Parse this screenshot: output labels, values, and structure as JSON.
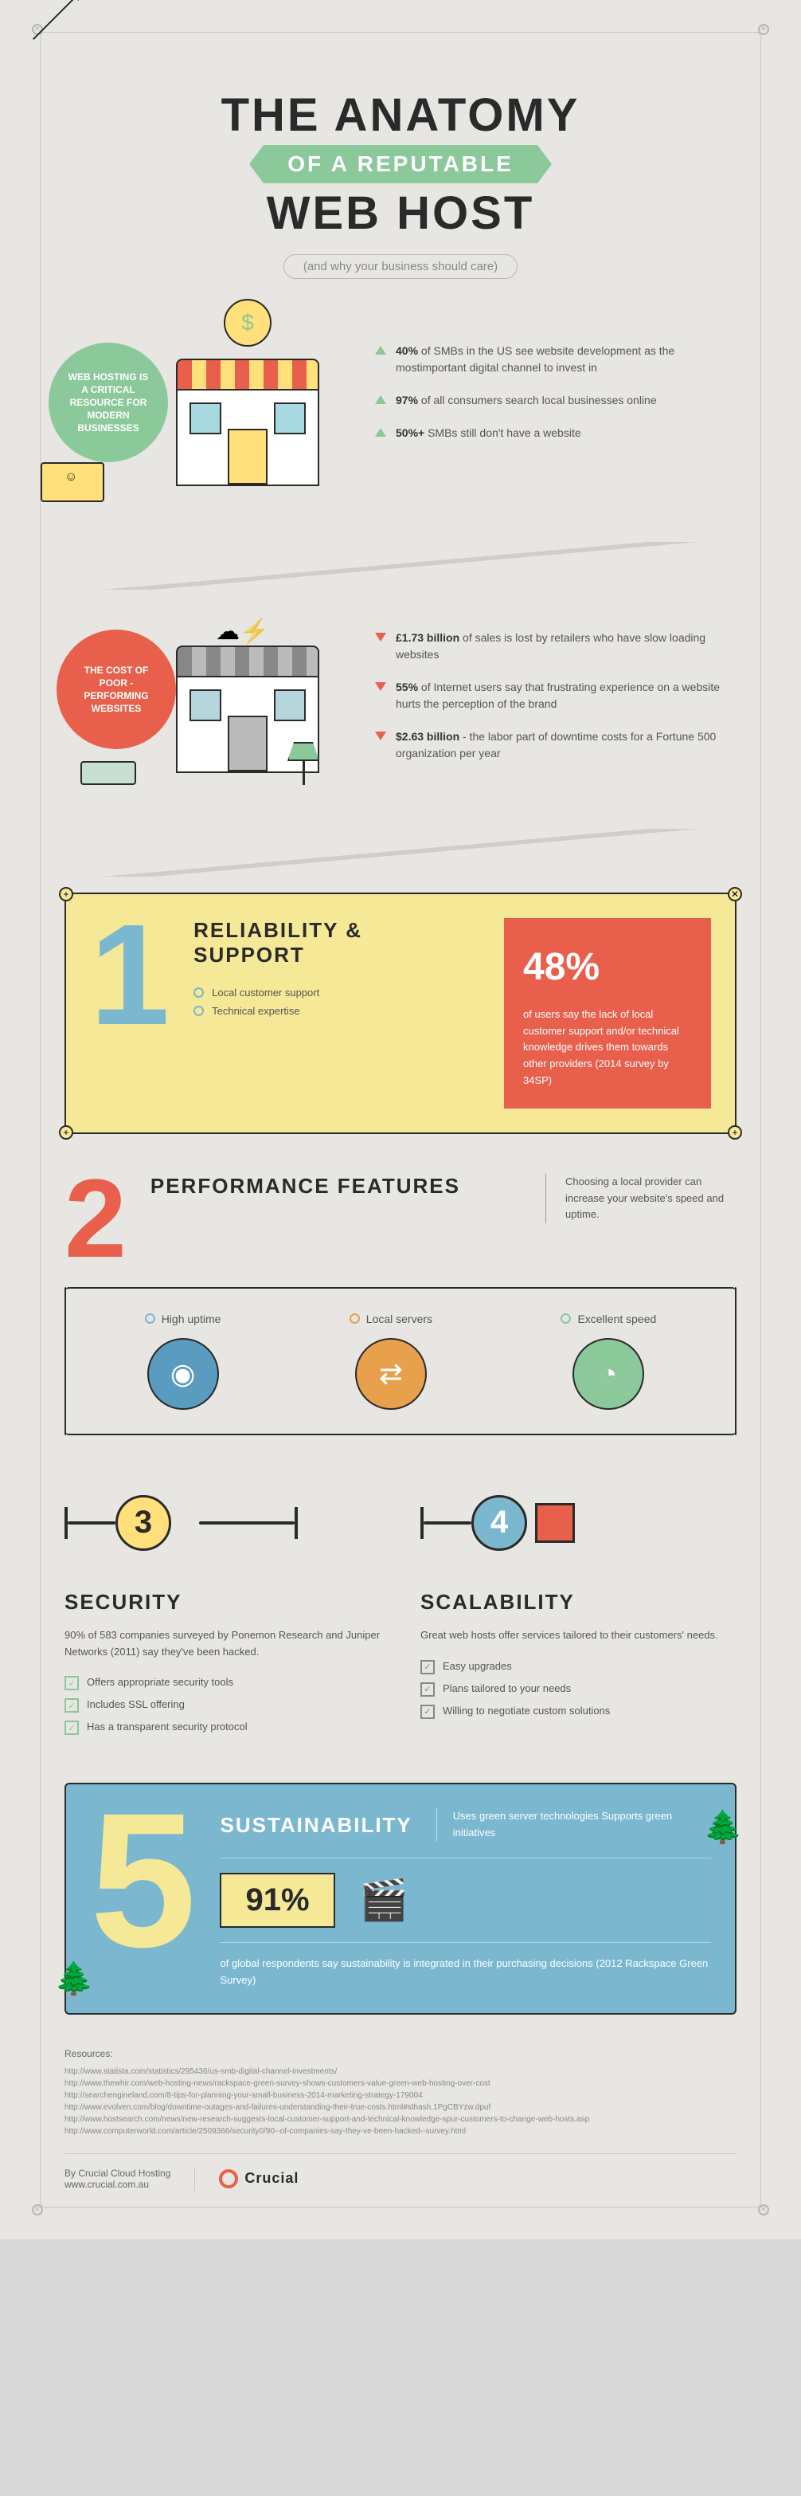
{
  "title": {
    "top": "THE ANATOMY",
    "mid": "OF A REPUTABLE",
    "bot": "WEB HOST",
    "tagline": "(and why your business should care)"
  },
  "intro1": {
    "badge": "WEB HOSTING IS A CRITICAL RESOURCE FOR MODERN BUSINESSES",
    "facts": [
      {
        "dir": "up",
        "bold": "40%",
        "text": " of SMBs in the US see website development as the mostimportant digital channel to invest in"
      },
      {
        "dir": "up",
        "bold": "97%",
        "text": " of all consumers search local businesses online"
      },
      {
        "dir": "up",
        "bold": "50%+",
        "text": " SMBs still don't have a website"
      }
    ]
  },
  "intro2": {
    "badge": "THE COST OF POOR - PERFORMING WEBSITES",
    "facts": [
      {
        "dir": "down",
        "bold": "£1.73 billion",
        "text": " of sales is lost by retailers who have slow loading websites"
      },
      {
        "dir": "down",
        "bold": "55%",
        "text": " of Internet users say that frustrating experience on a website hurts the perception of the brand"
      },
      {
        "dir": "down",
        "bold": "$2.63 billion",
        "text": " - the labor part of downtime costs for a Fortune 500 organization per year"
      }
    ]
  },
  "sec1": {
    "num": "1",
    "title": "RELIABILITY & SUPPORT",
    "bullets": [
      "Local customer support",
      "Technical expertise"
    ],
    "pct": "48%",
    "stat": "of users say the lack of local customer support and/or technical knowledge drives them towards other providers (2014 survey by 34SP)"
  },
  "sec2": {
    "num": "2",
    "title": "PERFORMANCE FEATURES",
    "desc": "Choosing a local provider can increase your website's speed and uptime.",
    "features": [
      {
        "label": "High uptime",
        "icon": "◉",
        "color": "#5a9bc0"
      },
      {
        "label": "Local servers",
        "icon": "⇄",
        "color": "#e8a04c"
      },
      {
        "label": "Excellent speed",
        "icon": "◔",
        "color": "#8bc89a"
      }
    ]
  },
  "sec3": {
    "num": "3",
    "title": "SECURITY",
    "desc": "90% of 583 companies surveyed by Ponemon Research and Juniper Networks (2011) say they've been hacked.",
    "checks": [
      "Offers appropriate security tools",
      "Includes SSL offering",
      "Has a transparent security protocol"
    ]
  },
  "sec4": {
    "num": "4",
    "title": "SCALABILITY",
    "desc": "Great web hosts offer services tailored to their customers' needs.",
    "checks": [
      "Easy upgrades",
      "Plans tailored to your needs",
      "Willing to negotiate custom solutions"
    ]
  },
  "sec5": {
    "num": "5",
    "title": "SUSTAINABILITY",
    "sub": "Uses green server technologies Supports green initiatives",
    "pct": "91%",
    "foot": "of global respondents say sustainability is integrated in their purchasing decisions (2012 Rackspace Green Survey)"
  },
  "resources": {
    "heading": "Resources:",
    "links": [
      "http://www.statista.com/statistics/295436/us-smb-digital-channel-investments/",
      "http://www.thewhir.com/web-hosting-news/rackspace-green-survey-shows-customers-value-green-web-hosting-over-cost",
      "http://searchengineland.com/8-tips-for-planning-your-small-business-2014-marketing-strategy-179004",
      "http://www.evolven.com/blog/downtime-outages-and-failures-understanding-their-true-costs.html#sthash.1PgCBYzw.dpuf",
      "http://www.hostsearch.com/news/new-research-suggests-local-customer-support-and-technical-knowledge-spur-customers-to-change-web-hosts.asp",
      "http://www.computerworld.com/article/2509366/security0/90--of-companies-say-they-ve-been-hacked--survey.html"
    ]
  },
  "footer": {
    "by": "By Crucial Cloud Hosting",
    "url": "www.crucial.com.au",
    "brand": "Crucial"
  }
}
